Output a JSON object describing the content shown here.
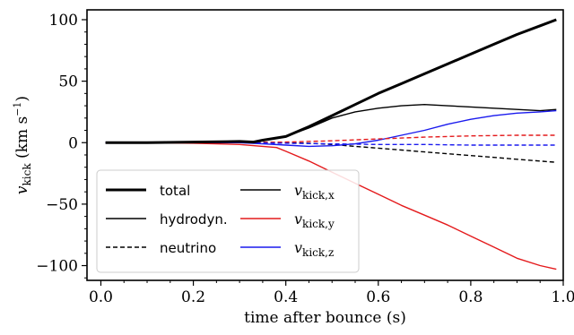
{
  "chart_data": {
    "type": "line",
    "xlabel": "time after bounce (s)",
    "ylabel": "v_kick (km s^-1)",
    "ylabel_parts": {
      "v": "v",
      "sub": "kick",
      "unit": "(km s",
      "exp": "−1",
      "close": ")"
    },
    "xlim": [
      -0.03,
      1.0
    ],
    "ylim": [
      -112,
      108
    ],
    "xticks": [
      0.0,
      0.2,
      0.4,
      0.6,
      0.8,
      1.0
    ],
    "xtick_labels": [
      "0.0",
      "0.2",
      "0.4",
      "0.6",
      "0.8",
      "1.0"
    ],
    "yticks": [
      -100,
      -50,
      0,
      50,
      100
    ],
    "ytick_labels": [
      "−100",
      "−50",
      "0",
      "50",
      "100"
    ],
    "legend_placement": "lower-left",
    "legend_columns": 2,
    "series": [
      {
        "name": "total",
        "color": "#000000",
        "style": "solid",
        "width": "thick",
        "x": [
          0.01,
          0.1,
          0.2,
          0.3,
          0.33,
          0.35,
          0.4,
          0.45,
          0.5,
          0.55,
          0.6,
          0.65,
          0.7,
          0.75,
          0.8,
          0.85,
          0.9,
          0.95,
          0.985
        ],
        "y": [
          0,
          0,
          0.5,
          1,
          0.5,
          2,
          5,
          13,
          22,
          31,
          40,
          48,
          56,
          64,
          72,
          80,
          88,
          95,
          100
        ]
      },
      {
        "name": "hydrodyn.",
        "color": "#000000",
        "style": "solid",
        "width": "thin",
        "x": [
          0.01,
          0.1,
          0.2,
          0.3,
          0.33,
          0.35,
          0.4,
          0.45,
          0.5,
          0.55,
          0.6,
          0.65,
          0.7,
          0.75,
          0.8,
          0.85,
          0.9,
          0.95,
          0.985
        ],
        "y": [
          0,
          0,
          0.5,
          1,
          0.5,
          1.5,
          5,
          12,
          20,
          25,
          28,
          30,
          31,
          30,
          29,
          28,
          27,
          26,
          27
        ]
      },
      {
        "name": "neutrino",
        "color": "#000000",
        "style": "dashed",
        "width": "thin",
        "x": [
          0.01,
          0.1,
          0.2,
          0.3,
          0.35,
          0.4,
          0.45,
          0.5,
          0.55,
          0.6,
          0.65,
          0.7,
          0.75,
          0.8,
          0.85,
          0.9,
          0.95,
          0.985
        ],
        "y": [
          0,
          0,
          0,
          0.5,
          0.3,
          0,
          -0.5,
          -1.5,
          -3,
          -4.5,
          -6,
          -7.5,
          -9,
          -10.5,
          -12,
          -13.5,
          -15,
          -16
        ]
      },
      {
        "name": "v_kick,x",
        "legend_math": {
          "v": "v",
          "sub": "kick,x"
        },
        "color": "#000000",
        "style": "solid",
        "width": "thin",
        "legend_only": true,
        "x": [],
        "y": []
      },
      {
        "name": "v_kick,y",
        "legend_math": {
          "v": "v",
          "sub": "kick,y"
        },
        "color": "#e41a1c",
        "style": "solid",
        "width": "thin",
        "x": [
          0.01,
          0.1,
          0.2,
          0.3,
          0.35,
          0.38,
          0.4,
          0.45,
          0.5,
          0.55,
          0.6,
          0.65,
          0.7,
          0.75,
          0.8,
          0.85,
          0.9,
          0.95,
          0.985
        ],
        "y": [
          0,
          0,
          -0.5,
          -1.5,
          -3,
          -4,
          -7,
          -15,
          -24,
          -33,
          -42,
          -51,
          -59,
          -67,
          -76,
          -85,
          -94,
          -100,
          -103
        ]
      },
      {
        "name": "v_kick,z",
        "legend_math": {
          "v": "v",
          "sub": "kick,z"
        },
        "color": "#1a1aee",
        "style": "solid",
        "width": "thin",
        "x": [
          0.01,
          0.1,
          0.2,
          0.3,
          0.35,
          0.4,
          0.45,
          0.5,
          0.55,
          0.6,
          0.65,
          0.7,
          0.75,
          0.8,
          0.85,
          0.9,
          0.95,
          0.985
        ],
        "y": [
          0,
          0,
          0,
          0,
          -1,
          -2,
          -3,
          -2.5,
          -1,
          2,
          6,
          10,
          15,
          19,
          22,
          24,
          25,
          26
        ]
      },
      {
        "name": "neutrino y",
        "color": "#e41a1c",
        "style": "dashed",
        "width": "thin",
        "in_legend": false,
        "x": [
          0.01,
          0.1,
          0.2,
          0.3,
          0.4,
          0.5,
          0.6,
          0.7,
          0.8,
          0.9,
          0.985
        ],
        "y": [
          0,
          0,
          0,
          0,
          0.5,
          1.5,
          3,
          4.5,
          5.5,
          6,
          6
        ]
      },
      {
        "name": "neutrino z",
        "color": "#1a1aee",
        "style": "dashed",
        "width": "thin",
        "in_legend": false,
        "x": [
          0.01,
          0.1,
          0.2,
          0.3,
          0.4,
          0.5,
          0.6,
          0.7,
          0.8,
          0.9,
          0.985
        ],
        "y": [
          0,
          0,
          0,
          0,
          -0.5,
          -1,
          -1.5,
          -1.5,
          -2,
          -2,
          -2
        ]
      }
    ]
  }
}
